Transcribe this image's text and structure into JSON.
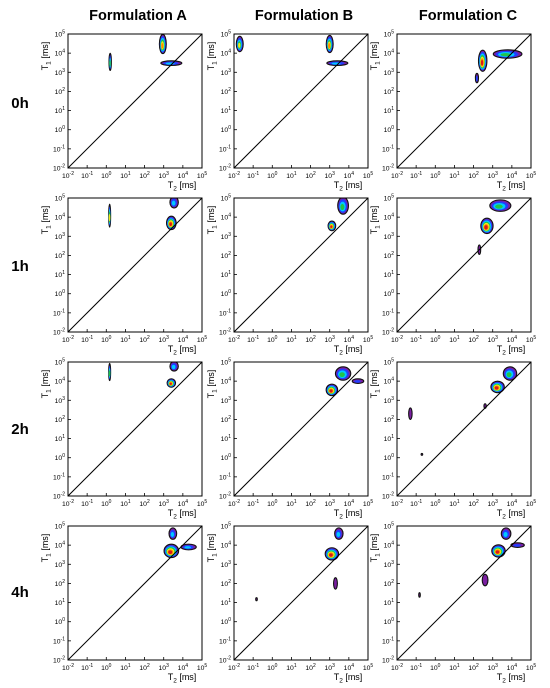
{
  "columns": [
    "Formulation A",
    "Formulation B",
    "Formulation C"
  ],
  "rows": [
    "0h",
    "1h",
    "2h",
    "4h"
  ],
  "axes": {
    "x_tick_labels": [
      "10^-2",
      "10^-1",
      "10^0",
      "10^1",
      "10^2",
      "10^3",
      "10^4",
      "10^5"
    ],
    "y_tick_labels": [
      "10^-2",
      "10^-1",
      "10^0",
      "10^1",
      "10^2",
      "10^3",
      "10^4",
      "10^5"
    ],
    "xlabel_base": "T",
    "xlabel_sub": "2",
    "xlabel_unit": " [ms]",
    "ylabel_base": "T",
    "ylabel_sub": "1",
    "ylabel_unit": " [ms]"
  },
  "colors": {
    "colormap": [
      "#7b1fa2",
      "#1f3fff",
      "#00c8ff",
      "#21c44a",
      "#f2ea1d",
      "#ff8a00",
      "#d81a1a"
    ],
    "contour_edge": "#111111",
    "diagonal": "#000000"
  },
  "chart_data": [
    {
      "type": "heatmap",
      "column": "Formulation A",
      "row": "0h",
      "x_scale": "log",
      "y_scale": "log",
      "xlim": [
        0.01,
        100000
      ],
      "ylim": [
        0.01,
        100000
      ],
      "diagonal": "T1 = T2",
      "peaks": [
        {
          "t2_ms": 1.6,
          "t1_ms": 3500,
          "spread": [
            0.06,
            0.45
          ],
          "peak_level": 4
        },
        {
          "t2_ms": 900,
          "t1_ms": 30000,
          "spread": [
            0.18,
            0.5
          ],
          "peak_level": 6
        },
        {
          "t2_ms": 2500,
          "t1_ms": 3000,
          "spread": [
            0.55,
            0.12
          ],
          "peak_level": 3
        }
      ]
    },
    {
      "type": "heatmap",
      "column": "Formulation B",
      "row": "0h",
      "x_scale": "log",
      "y_scale": "log",
      "xlim": [
        0.01,
        100000
      ],
      "ylim": [
        0.01,
        100000
      ],
      "diagonal": "T1 = T2",
      "peaks": [
        {
          "t2_ms": 0.02,
          "t1_ms": 30000,
          "spread": [
            0.18,
            0.4
          ],
          "peak_level": 5
        },
        {
          "t2_ms": 1000,
          "t1_ms": 30000,
          "spread": [
            0.18,
            0.45
          ],
          "peak_level": 6
        },
        {
          "t2_ms": 2500,
          "t1_ms": 3000,
          "spread": [
            0.55,
            0.12
          ],
          "peak_level": 3
        }
      ]
    },
    {
      "type": "heatmap",
      "column": "Formulation C",
      "row": "0h",
      "x_scale": "log",
      "y_scale": "log",
      "xlim": [
        0.01,
        100000
      ],
      "ylim": [
        0.01,
        100000
      ],
      "diagonal": "T1 = T2",
      "peaks": [
        {
          "t2_ms": 300,
          "t1_ms": 4000,
          "spread": [
            0.22,
            0.55
          ],
          "peak_level": 7
        },
        {
          "t2_ms": 6000,
          "t1_ms": 9000,
          "spread": [
            0.75,
            0.22
          ],
          "peak_level": 4
        },
        {
          "t2_ms": 150,
          "t1_ms": 500,
          "spread": [
            0.08,
            0.25
          ],
          "peak_level": 2
        }
      ]
    },
    {
      "type": "heatmap",
      "column": "Formulation A",
      "row": "1h",
      "x_scale": "log",
      "y_scale": "log",
      "xlim": [
        0.01,
        100000
      ],
      "ylim": [
        0.01,
        100000
      ],
      "diagonal": "T1 = T2",
      "peaks": [
        {
          "t2_ms": 1.5,
          "t1_ms": 12000,
          "spread": [
            0.05,
            0.6
          ],
          "peak_level": 5
        },
        {
          "t2_ms": 2500,
          "t1_ms": 5000,
          "spread": [
            0.25,
            0.35
          ],
          "peak_level": 7
        },
        {
          "t2_ms": 3500,
          "t1_ms": 60000,
          "spread": [
            0.22,
            0.3
          ],
          "peak_level": 3
        }
      ]
    },
    {
      "type": "heatmap",
      "column": "Formulation B",
      "row": "1h",
      "x_scale": "log",
      "y_scale": "log",
      "xlim": [
        0.01,
        100000
      ],
      "ylim": [
        0.01,
        100000
      ],
      "diagonal": "T1 = T2",
      "peaks": [
        {
          "t2_ms": 1300,
          "t1_ms": 3500,
          "spread": [
            0.2,
            0.25
          ],
          "peak_level": 7
        },
        {
          "t2_ms": 5000,
          "t1_ms": 40000,
          "spread": [
            0.28,
            0.45
          ],
          "peak_level": 4
        }
      ]
    },
    {
      "type": "heatmap",
      "column": "Formulation C",
      "row": "1h",
      "x_scale": "log",
      "y_scale": "log",
      "xlim": [
        0.01,
        100000
      ],
      "ylim": [
        0.01,
        100000
      ],
      "diagonal": "T1 = T2",
      "peaks": [
        {
          "t2_ms": 500,
          "t1_ms": 3500,
          "spread": [
            0.32,
            0.4
          ],
          "peak_level": 7
        },
        {
          "t2_ms": 2500,
          "t1_ms": 40000,
          "spread": [
            0.55,
            0.3
          ],
          "peak_level": 4
        },
        {
          "t2_ms": 200,
          "t1_ms": 200,
          "spread": [
            0.07,
            0.25
          ],
          "peak_level": 1
        }
      ]
    },
    {
      "type": "heatmap",
      "column": "Formulation A",
      "row": "2h",
      "x_scale": "log",
      "y_scale": "log",
      "xlim": [
        0.01,
        100000
      ],
      "ylim": [
        0.01,
        100000
      ],
      "diagonal": "T1 = T2",
      "peaks": [
        {
          "t2_ms": 1.5,
          "t1_ms": 30000,
          "spread": [
            0.05,
            0.45
          ],
          "peak_level": 4
        },
        {
          "t2_ms": 2500,
          "t1_ms": 8000,
          "spread": [
            0.22,
            0.22
          ],
          "peak_level": 7
        },
        {
          "t2_ms": 3500,
          "t1_ms": 60000,
          "spread": [
            0.22,
            0.25
          ],
          "peak_level": 3
        }
      ]
    },
    {
      "type": "heatmap",
      "column": "Formulation B",
      "row": "2h",
      "x_scale": "log",
      "y_scale": "log",
      "xlim": [
        0.01,
        100000
      ],
      "ylim": [
        0.01,
        100000
      ],
      "diagonal": "T1 = T2",
      "peaks": [
        {
          "t2_ms": 1300,
          "t1_ms": 3500,
          "spread": [
            0.3,
            0.3
          ],
          "peak_level": 7
        },
        {
          "t2_ms": 5000,
          "t1_ms": 25000,
          "spread": [
            0.4,
            0.35
          ],
          "peak_level": 4
        },
        {
          "t2_ms": 30000,
          "t1_ms": 10000,
          "spread": [
            0.3,
            0.12
          ],
          "peak_level": 2
        }
      ]
    },
    {
      "type": "heatmap",
      "column": "Formulation C",
      "row": "2h",
      "x_scale": "log",
      "y_scale": "log",
      "xlim": [
        0.01,
        100000
      ],
      "ylim": [
        0.01,
        100000
      ],
      "diagonal": "T1 = T2",
      "peaks": [
        {
          "t2_ms": 1800,
          "t1_ms": 5000,
          "spread": [
            0.35,
            0.3
          ],
          "peak_level": 7
        },
        {
          "t2_ms": 8000,
          "t1_ms": 25000,
          "spread": [
            0.35,
            0.35
          ],
          "peak_level": 4
        },
        {
          "t2_ms": 400,
          "t1_ms": 500,
          "spread": [
            0.06,
            0.12
          ],
          "peak_level": 1
        },
        {
          "t2_ms": 0.05,
          "t1_ms": 200,
          "spread": [
            0.09,
            0.3
          ],
          "peak_level": 1
        },
        {
          "t2_ms": 0.2,
          "t1_ms": 1.5,
          "spread": [
            0.025,
            0.05
          ],
          "peak_level": 1
        }
      ]
    },
    {
      "type": "heatmap",
      "column": "Formulation A",
      "row": "4h",
      "x_scale": "log",
      "y_scale": "log",
      "xlim": [
        0.01,
        100000
      ],
      "ylim": [
        0.01,
        100000
      ],
      "diagonal": "T1 = T2",
      "peaks": [
        {
          "t2_ms": 2500,
          "t1_ms": 5000,
          "spread": [
            0.38,
            0.35
          ],
          "peak_level": 7
        },
        {
          "t2_ms": 20000,
          "t1_ms": 8000,
          "spread": [
            0.4,
            0.15
          ],
          "peak_level": 3
        },
        {
          "t2_ms": 3000,
          "t1_ms": 40000,
          "spread": [
            0.2,
            0.3
          ],
          "peak_level": 3
        }
      ]
    },
    {
      "type": "heatmap",
      "column": "Formulation B",
      "row": "4h",
      "x_scale": "log",
      "y_scale": "log",
      "xlim": [
        0.01,
        100000
      ],
      "ylim": [
        0.01,
        100000
      ],
      "diagonal": "T1 = T2",
      "peaks": [
        {
          "t2_ms": 1300,
          "t1_ms": 3500,
          "spread": [
            0.35,
            0.32
          ],
          "peak_level": 7
        },
        {
          "t2_ms": 3000,
          "t1_ms": 40000,
          "spread": [
            0.22,
            0.3
          ],
          "peak_level": 3
        },
        {
          "t2_ms": 2000,
          "t1_ms": 100,
          "spread": [
            0.1,
            0.3
          ],
          "peak_level": 1
        },
        {
          "t2_ms": 0.15,
          "t1_ms": 15,
          "spread": [
            0.03,
            0.08
          ],
          "peak_level": 1
        }
      ]
    },
    {
      "type": "heatmap",
      "column": "Formulation C",
      "row": "4h",
      "x_scale": "log",
      "y_scale": "log",
      "xlim": [
        0.01,
        100000
      ],
      "ylim": [
        0.01,
        100000
      ],
      "diagonal": "T1 = T2",
      "peaks": [
        {
          "t2_ms": 2000,
          "t1_ms": 5000,
          "spread": [
            0.35,
            0.32
          ],
          "peak_level": 7
        },
        {
          "t2_ms": 5000,
          "t1_ms": 40000,
          "spread": [
            0.25,
            0.3
          ],
          "peak_level": 3
        },
        {
          "t2_ms": 20000,
          "t1_ms": 10000,
          "spread": [
            0.35,
            0.12
          ],
          "peak_level": 2
        },
        {
          "t2_ms": 400,
          "t1_ms": 150,
          "spread": [
            0.15,
            0.3
          ],
          "peak_level": 1
        },
        {
          "t2_ms": 0.15,
          "t1_ms": 25,
          "spread": [
            0.03,
            0.12
          ],
          "peak_level": 1
        }
      ]
    }
  ]
}
